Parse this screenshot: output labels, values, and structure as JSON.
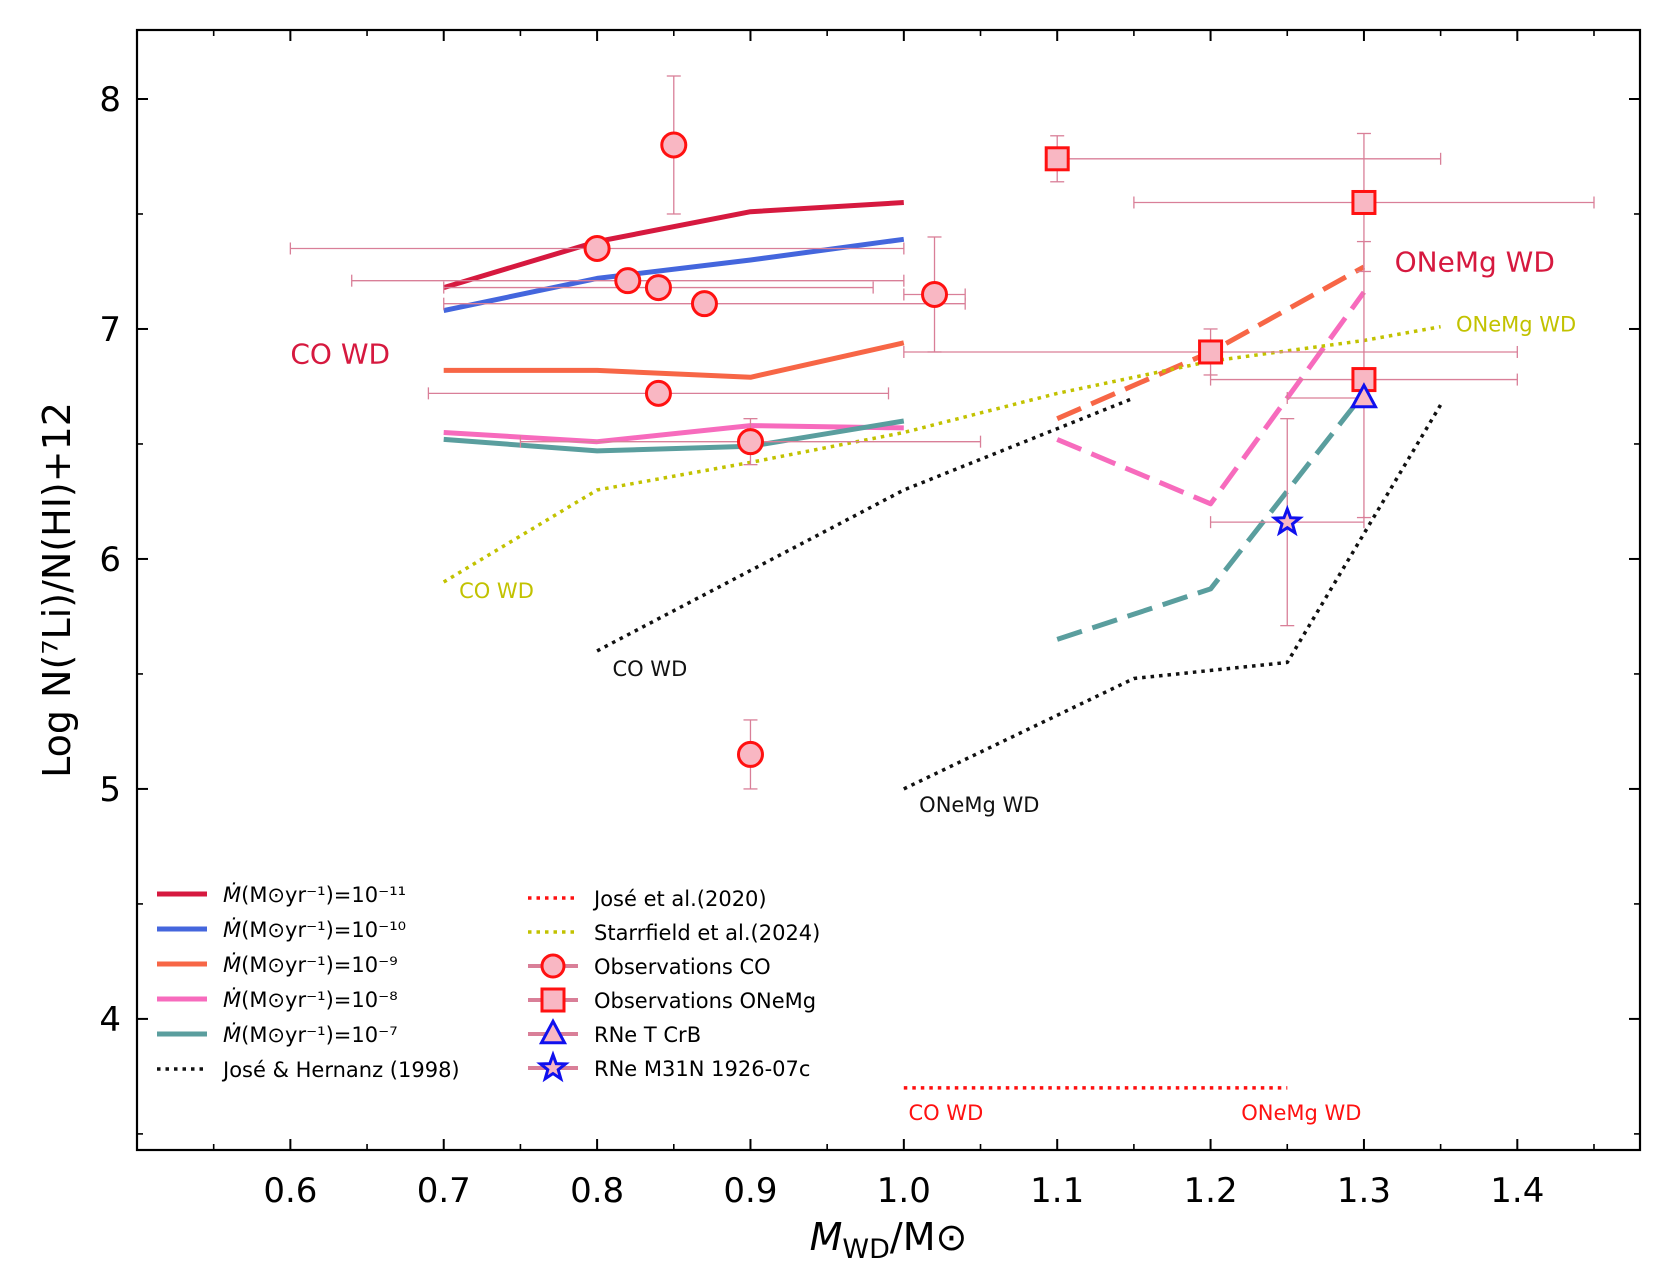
{
  "chart_data": {
    "type": "line",
    "xlabel_main": "M",
    "xlabel_sub": "WD",
    "xlabel_tail": "/M⊙",
    "ylabel": "Log N(⁷Li)/N(HI)+12",
    "xlim": [
      0.5,
      1.48
    ],
    "ylim": [
      3.43,
      8.3
    ],
    "xticks": [
      {
        "v": 0.6,
        "label": "0.6"
      },
      {
        "v": 0.7,
        "label": "0.7"
      },
      {
        "v": 0.8,
        "label": "0.8"
      },
      {
        "v": 0.9,
        "label": "0.9"
      },
      {
        "v": 1.0,
        "label": "1.0"
      },
      {
        "v": 1.1,
        "label": "1.1"
      },
      {
        "v": 1.2,
        "label": "1.2"
      },
      {
        "v": 1.3,
        "label": "1.3"
      },
      {
        "v": 1.4,
        "label": "1.4"
      }
    ],
    "xminor": [
      0.55,
      0.65,
      0.75,
      0.85,
      0.95,
      1.05,
      1.15,
      1.25,
      1.35,
      1.45
    ],
    "yticks": [
      {
        "v": 4,
        "label": "4"
      },
      {
        "v": 5,
        "label": "5"
      },
      {
        "v": 6,
        "label": "6"
      },
      {
        "v": 7,
        "label": "7"
      },
      {
        "v": 8,
        "label": "8"
      }
    ],
    "yminor": [
      3.5,
      4.5,
      5.5,
      6.5,
      7.5
    ],
    "series": [
      {
        "key": "m11",
        "style": "solid",
        "color": "#d6193f",
        "x": [
          0.7,
          0.8,
          0.9,
          1.0
        ],
        "y": [
          7.18,
          7.38,
          7.51,
          7.55
        ]
      },
      {
        "key": "m10",
        "style": "solid",
        "color": "#4466dd",
        "x": [
          0.7,
          0.8,
          0.9,
          1.0
        ],
        "y": [
          7.08,
          7.22,
          7.3,
          7.39
        ]
      },
      {
        "key": "m9",
        "style": "solid",
        "color": "#f76646",
        "x": [
          0.7,
          0.8,
          0.9,
          1.0
        ],
        "y": [
          6.82,
          6.82,
          6.79,
          6.94
        ]
      },
      {
        "key": "m8",
        "style": "solid",
        "color": "#f76bbd",
        "x": [
          0.7,
          0.8,
          0.9,
          1.0
        ],
        "y": [
          6.55,
          6.51,
          6.58,
          6.57
        ]
      },
      {
        "key": "m7",
        "style": "solid",
        "color": "#5a9e9e",
        "x": [
          0.7,
          0.8,
          0.9,
          1.0
        ],
        "y": [
          6.52,
          6.47,
          6.49,
          6.6
        ]
      },
      {
        "key": "m9_onemg",
        "style": "dashed",
        "color": "#f76646",
        "x": [
          1.1,
          1.2,
          1.3
        ],
        "y": [
          6.61,
          6.9,
          7.27
        ]
      },
      {
        "key": "m8_onemg",
        "style": "dashed",
        "color": "#f76bbd",
        "x": [
          1.1,
          1.2,
          1.3
        ],
        "y": [
          6.52,
          6.24,
          7.16
        ]
      },
      {
        "key": "m7_onemg",
        "style": "dashed",
        "color": "#5a9e9e",
        "x": [
          1.1,
          1.2,
          1.3
        ],
        "y": [
          5.65,
          5.87,
          6.72
        ]
      },
      {
        "key": "jose98_co",
        "style": "dotted",
        "color": "#111111",
        "x": [
          0.8,
          0.9,
          1.0,
          1.15
        ],
        "y": [
          5.6,
          5.95,
          6.3,
          6.7
        ]
      },
      {
        "key": "jose98_onemg",
        "style": "dotted",
        "color": "#111111",
        "x": [
          1.0,
          1.15,
          1.25,
          1.35
        ],
        "y": [
          5.0,
          5.48,
          5.55,
          6.67
        ]
      },
      {
        "key": "jose20",
        "style": "dotted",
        "color": "#ff1111",
        "x": [
          1.0,
          1.25
        ],
        "y": [
          3.7,
          3.7
        ]
      },
      {
        "key": "starrfield24",
        "style": "dotted",
        "color": "#c2c200",
        "x": [
          0.7,
          0.8,
          0.9,
          1.0,
          1.1,
          1.2,
          1.3,
          1.35
        ],
        "y": [
          5.9,
          6.3,
          6.42,
          6.55,
          6.72,
          6.86,
          6.95,
          7.01
        ]
      }
    ],
    "observations": [
      {
        "marker": "circle",
        "x": 0.85,
        "y": 7.8,
        "xerr": [
          0,
          0
        ],
        "yerr": [
          0.3,
          0.3
        ]
      },
      {
        "marker": "circle",
        "x": 0.8,
        "y": 7.35,
        "xerr": [
          0.2,
          0.2
        ],
        "yerr": [
          0,
          0
        ]
      },
      {
        "marker": "circle",
        "x": 0.82,
        "y": 7.21,
        "xerr": [
          0.18,
          0.18
        ],
        "yerr": [
          0,
          0
        ]
      },
      {
        "marker": "circle",
        "x": 0.84,
        "y": 7.18,
        "xerr": [
          0.14,
          0.14
        ],
        "yerr": [
          0,
          0
        ]
      },
      {
        "marker": "circle",
        "x": 0.87,
        "y": 7.11,
        "xerr": [
          0.17,
          0.17
        ],
        "yerr": [
          0,
          0
        ]
      },
      {
        "marker": "circle",
        "x": 1.02,
        "y": 7.15,
        "xerr": [
          0.02,
          0.02
        ],
        "yerr": [
          0.25,
          0.25
        ]
      },
      {
        "marker": "circle",
        "x": 0.84,
        "y": 6.72,
        "xerr": [
          0.15,
          0.15
        ],
        "yerr": [
          0,
          0
        ]
      },
      {
        "marker": "circle",
        "x": 0.9,
        "y": 6.51,
        "xerr": [
          0.15,
          0.15
        ],
        "yerr": [
          0.1,
          0.1
        ]
      },
      {
        "marker": "circle",
        "x": 0.9,
        "y": 5.15,
        "xerr": [
          0,
          0
        ],
        "yerr": [
          0.15,
          0.15
        ]
      },
      {
        "marker": "square",
        "x": 1.1,
        "y": 7.74,
        "xerr": [
          0,
          0.25
        ],
        "yerr": [
          0.1,
          0.1
        ]
      },
      {
        "marker": "square",
        "x": 1.3,
        "y": 7.55,
        "xerr": [
          0.15,
          0.15
        ],
        "yerr": [
          0.3,
          0.3
        ]
      },
      {
        "marker": "square",
        "x": 1.2,
        "y": 6.9,
        "xerr": [
          0.2,
          0.2
        ],
        "yerr": [
          0.1,
          0.1
        ]
      },
      {
        "marker": "square",
        "x": 1.3,
        "y": 6.78,
        "xerr": [
          0.1,
          0.1
        ],
        "yerr": [
          0.6,
          0.6
        ]
      },
      {
        "marker": "triangle",
        "x": 1.3,
        "y": 6.7,
        "xerr": [
          0.05,
          0
        ],
        "yerr": [
          0,
          0
        ]
      },
      {
        "marker": "star",
        "x": 1.25,
        "y": 6.16,
        "xerr": [
          0.05,
          0.05
        ],
        "yerr": [
          0.45,
          0.45
        ]
      }
    ],
    "annotations": [
      {
        "text": "CO WD",
        "x": 0.6,
        "y": 6.85,
        "color": "#d6193f",
        "size": 28
      },
      {
        "text": "ONeMg WD",
        "x": 1.32,
        "y": 7.25,
        "color": "#d6193f",
        "size": 28
      },
      {
        "text": "ONeMg WD",
        "x": 1.36,
        "y": 6.99,
        "color": "#c2c200",
        "size": 21
      },
      {
        "text": "CO WD",
        "x": 0.71,
        "y": 5.83,
        "color": "#c2c200",
        "size": 21
      },
      {
        "text": "CO WD",
        "x": 0.81,
        "y": 5.49,
        "color": "#111111",
        "size": 21
      },
      {
        "text": "ONeMg WD",
        "x": 1.01,
        "y": 4.9,
        "color": "#111111",
        "size": 21
      },
      {
        "text": "CO WD",
        "x": 1.003,
        "y": 3.56,
        "color": "#ff1111",
        "size": 21
      },
      {
        "text": "ONeMg WD",
        "x": 1.22,
        "y": 3.56,
        "color": "#ff1111",
        "size": 21
      }
    ],
    "legend_left": [
      {
        "key": "m11",
        "label": "(M⊙yr⁻¹)=10⁻¹¹"
      },
      {
        "key": "m10",
        "label": "(M⊙yr⁻¹)=10⁻¹⁰"
      },
      {
        "key": "m9",
        "label": "(M⊙yr⁻¹)=10⁻⁹"
      },
      {
        "key": "m8",
        "label": "(M⊙yr⁻¹)=10⁻⁸"
      },
      {
        "key": "m7",
        "label": "(M⊙yr⁻¹)=10⁻⁷"
      },
      {
        "key": "jose98_co",
        "label": "José & Hernanz (1998)"
      }
    ],
    "legend_mdot_symbol": "Ṁ",
    "legend_right": [
      {
        "key": "jose20",
        "label": "José et al.(2020)"
      },
      {
        "key": "starrfield24",
        "label": "Starrfield et al.(2024)"
      },
      {
        "marker": "circle",
        "label": "Observations CO"
      },
      {
        "marker": "square",
        "label": "Observations ONeMg"
      },
      {
        "marker": "triangle",
        "label": "RNe T CrB"
      },
      {
        "marker": "star",
        "label": "RNe M31N 1926-07c"
      }
    ],
    "colors": {
      "errorbar": "#d97f98",
      "marker_fill": "#f9b7c3",
      "marker_edge": "#ff1111",
      "rne_edge": "#1010ee",
      "axis": "#000000"
    }
  }
}
